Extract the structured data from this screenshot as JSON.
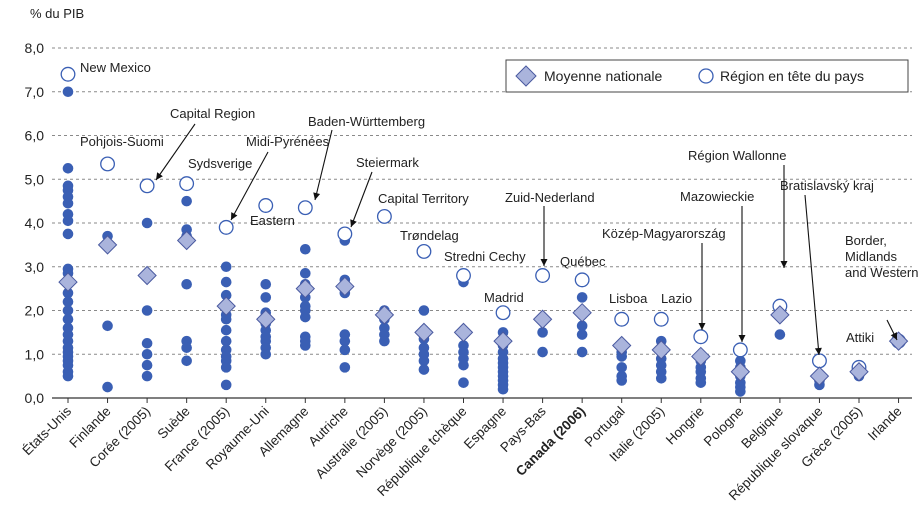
{
  "chart_data": {
    "type": "scatter",
    "ylabel": "% du PIB",
    "ylim": [
      0,
      8
    ],
    "yticks": [
      "0,0",
      "1,0",
      "2,0",
      "3,0",
      "4,0",
      "5,0",
      "6,0",
      "7,0",
      "8,0"
    ],
    "grid": "horizontal dashed",
    "legend": {
      "position": "top-right",
      "entries": [
        {
          "name": "Moyenne nationale",
          "marker": "diamond"
        },
        {
          "name": "Région en tête du pays",
          "marker": "open-circle"
        }
      ]
    },
    "colors": {
      "dot": "#3a5fb4",
      "diamond_fill": "#aab4dc",
      "diamond_stroke": "#4a5aa0",
      "circle_stroke": "#3a5fb4",
      "grid": "#8a8a8a"
    },
    "categories": [
      {
        "label": "États-Unis",
        "avg": 2.65,
        "top": 7.4,
        "top_label": "New Mexico",
        "regions": [
          7.0,
          5.25,
          4.85,
          4.75,
          4.6,
          4.45,
          4.2,
          4.05,
          3.75,
          2.95,
          2.85,
          2.6,
          2.4,
          2.2,
          2.0,
          1.8,
          1.6,
          1.45,
          1.3,
          1.15,
          1.05,
          0.95,
          0.85,
          0.75,
          0.6,
          0.5
        ]
      },
      {
        "label": "Finlande",
        "avg": 3.5,
        "top": 5.35,
        "top_label": "Pohjois-Suomi",
        "regions": [
          3.7,
          1.65,
          0.25
        ]
      },
      {
        "label": "Corée (2005)",
        "avg": 2.8,
        "top": 4.85,
        "top_label": "Capital Region",
        "regions": [
          4.0,
          2.0,
          1.25,
          1.0,
          0.75,
          0.5
        ]
      },
      {
        "label": "Suède",
        "avg": 3.6,
        "top": 4.9,
        "top_label": "Sydsverige",
        "regions": [
          4.5,
          3.85,
          3.7,
          2.6,
          1.3,
          1.15,
          0.85
        ]
      },
      {
        "label": "France (2005)",
        "avg": 2.1,
        "top": 3.9,
        "top_label": "Midi-Pyrénées",
        "regions": [
          3.0,
          2.65,
          2.35,
          2.1,
          1.9,
          1.8,
          1.55,
          1.3,
          1.1,
          0.95,
          0.85,
          0.7,
          0.3
        ]
      },
      {
        "label": "Royaume-Uni",
        "avg": 1.8,
        "top": 4.4,
        "top_label": "Eastern",
        "regions": [
          2.6,
          2.3,
          1.95,
          1.7,
          1.55,
          1.4,
          1.3,
          1.15,
          1.0
        ]
      },
      {
        "label": "Allemagne",
        "avg": 2.5,
        "top": 4.35,
        "top_label": "Baden-Württemberg",
        "regions": [
          3.4,
          2.85,
          2.6,
          2.3,
          2.1,
          2.0,
          1.85,
          1.4,
          1.3,
          1.2
        ]
      },
      {
        "label": "Autriche",
        "avg": 2.55,
        "top": 3.75,
        "top_label": "Steiermark",
        "regions": [
          3.6,
          2.7,
          2.4,
          1.45,
          1.3,
          1.1,
          0.7
        ]
      },
      {
        "label": "Australie (2005)",
        "avg": 1.9,
        "top": 4.15,
        "top_label": "Capital Territory",
        "regions": [
          2.0,
          1.8,
          1.6,
          1.45,
          1.3
        ]
      },
      {
        "label": "Norvège (2005)",
        "avg": 1.5,
        "top": 3.35,
        "top_label": "Trøndelag",
        "regions": [
          2.0,
          1.55,
          1.35,
          1.15,
          1.0,
          0.85,
          0.65
        ]
      },
      {
        "label": "République tchèque",
        "avg": 1.5,
        "top": 2.8,
        "top_label": "Stredni Cechy",
        "regions": [
          2.65,
          1.45,
          1.2,
          1.05,
          0.9,
          0.75,
          0.35
        ]
      },
      {
        "label": "Espagne",
        "avg": 1.3,
        "top": 1.95,
        "top_label": "Madrid",
        "regions": [
          1.5,
          1.2,
          1.05,
          0.9,
          0.8,
          0.7,
          0.6,
          0.5,
          0.4,
          0.3,
          0.2
        ]
      },
      {
        "label": "Pays-Bas",
        "avg": 1.8,
        "top": 2.8,
        "top_label": "Zuid-Nederland",
        "regions": [
          1.5,
          1.05
        ]
      },
      {
        "label": "Canada (2006)",
        "bold": true,
        "avg": 1.95,
        "top": 2.7,
        "top_label": "Québec",
        "regions": [
          2.3,
          1.9,
          1.65,
          1.45,
          1.05
        ]
      },
      {
        "label": "Portugal",
        "avg": 1.2,
        "top": 1.8,
        "top_label": "Lisboa",
        "regions": [
          1.05,
          0.95,
          0.7,
          0.5,
          0.4
        ]
      },
      {
        "label": "Italie (2005)",
        "avg": 1.1,
        "top": 1.8,
        "top_label": "Lazio",
        "regions": [
          1.3,
          1.15,
          0.9,
          0.75,
          0.6,
          0.45
        ]
      },
      {
        "label": "Hongrie",
        "avg": 0.95,
        "top": 1.4,
        "top_label": "Közép-Magyarország",
        "regions": [
          0.85,
          0.7,
          0.6,
          0.45,
          0.35
        ]
      },
      {
        "label": "Pologne",
        "avg": 0.6,
        "top": 1.1,
        "top_label": "Mazowieckie",
        "regions": [
          0.85,
          0.7,
          0.5,
          0.35,
          0.25,
          0.15
        ]
      },
      {
        "label": "Belgique",
        "avg": 1.9,
        "top": 2.1,
        "top_label": "Région Wallonne",
        "regions": [
          1.45
        ]
      },
      {
        "label": "République slovaque",
        "avg": 0.5,
        "top": 0.85,
        "top_label": "Bratislavský kraj",
        "regions": [
          0.4,
          0.3
        ]
      },
      {
        "label": "Grèce (2005)",
        "avg": 0.6,
        "top": 0.7,
        "top_label": "Attiki",
        "regions": [
          0.55,
          0.5
        ]
      },
      {
        "label": "Irlande",
        "avg": 1.3,
        "top": 1.3,
        "top_label": "Border, Midlands and Western",
        "regions": []
      }
    ]
  }
}
